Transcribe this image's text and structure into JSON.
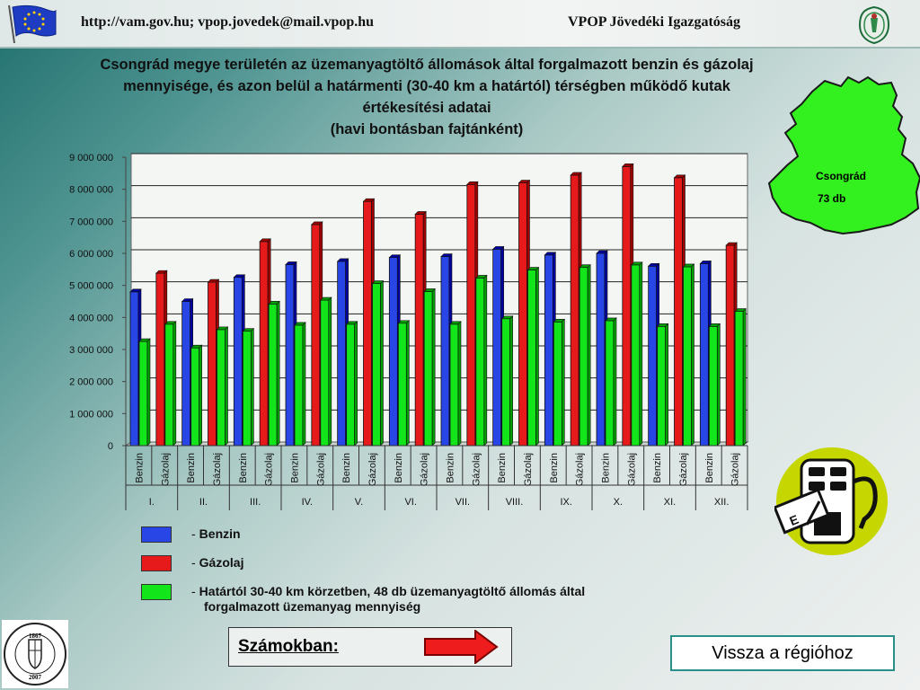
{
  "header": {
    "left_text": "http://vam.gov.hu; vpop.jovedek@mail.vpop.hu",
    "right_text": "VPOP Jövedéki Igazgatóság",
    "flag_icon": "eu-flag-icon",
    "emblem_icon": "customs-emblem-icon"
  },
  "title": {
    "line1": "Csongrád megye területén az üzemanyagtöltő állomások által forgalmazott benzin és gázolaj",
    "line2": "mennyisége, és azon belül a határmenti (30-40 km a határtól) térségben működő kutak",
    "line3": "értékesítési adatai",
    "line4": "(havi bontásban fajtánként)"
  },
  "chart_data": {
    "type": "bar",
    "months": [
      "I.",
      "II.",
      "III.",
      "IV.",
      "V.",
      "VI.",
      "VII.",
      "VIII.",
      "IX.",
      "X.",
      "XI.",
      "XII."
    ],
    "fuel_labels": [
      "Benzin",
      "Gázolaj"
    ],
    "series": [
      {
        "name": "Benzin",
        "color": "#2846e6",
        "values": [
          4800000,
          4500000,
          5250000,
          5650000,
          5750000,
          5870000,
          5900000,
          6130000,
          5950000,
          6000000,
          5600000,
          5680000
        ]
      },
      {
        "name": "Gázolaj",
        "color": "#e61a1a",
        "values": [
          5380000,
          5100000,
          6370000,
          6900000,
          7620000,
          7220000,
          8150000,
          8200000,
          8440000,
          8710000,
          8360000,
          6250000
        ]
      },
      {
        "name": "Határtól 30-40 km körzetben, 48 db üzemanyagtöltő állomás által forgalmazott üzemanyag mennyiség",
        "color": "#12e61a",
        "benzin_values": [
          3250000,
          3050000,
          3570000,
          3760000,
          3790000,
          3820000,
          3790000,
          3960000,
          3860000,
          3900000,
          3720000,
          3720000
        ],
        "gazolaj_values": [
          3790000,
          3620000,
          4420000,
          4540000,
          5060000,
          4810000,
          5230000,
          5480000,
          5560000,
          5640000,
          5580000,
          4190000
        ]
      }
    ],
    "y_ticks": [
      "0",
      "1 000 000",
      "2 000 000",
      "3 000 000",
      "4 000 000",
      "5 000 000",
      "6 000 000",
      "7 000 000",
      "8 000 000",
      "9 000 000"
    ],
    "ylim": [
      0,
      9000000
    ],
    "grid": true,
    "legend_position": "bottom-left"
  },
  "legend": {
    "benzin": "Benzin",
    "gazolaj": "Gázolaj",
    "hatar_line1": "Határtól 30-40 km körzetben, 48 db üzemanyagtöltő állomás által",
    "hatar_line2": "forgalmazott üzemanyag mennyiség",
    "dash": "-",
    "colors": {
      "benzin": "#2846e6",
      "gazolaj": "#e61a1a",
      "hatar": "#12e61a"
    }
  },
  "map": {
    "name": "Csongrád",
    "count": "73 db",
    "fill": "#33f01f"
  },
  "pump_icon": "fuel-pump-icon",
  "buttons": {
    "szamokban": "Számokban:",
    "vissza": "Vissza a régióhoz"
  },
  "seal": {
    "icon": "anniversary-seal-icon",
    "text": "140 ÉVES A VÁM- ÉS PÉNZÜGYŐRSÉG",
    "year_top": "1867",
    "year_bottom": "2007"
  }
}
